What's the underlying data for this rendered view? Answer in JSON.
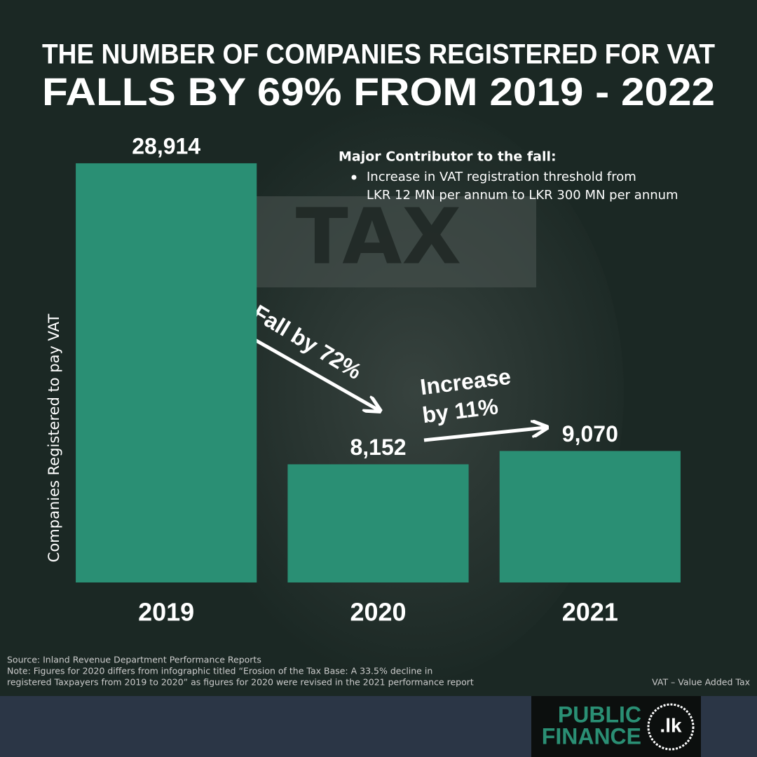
{
  "chart_data": {
    "type": "bar",
    "title": "THE NUMBER OF COMPANIES REGISTERED FOR VAT",
    "subtitle": "FALLS BY 69% FROM 2019 - 2022",
    "y_label": "Companies Registered to pay VAT",
    "categories": [
      "2019",
      "2020",
      "2021"
    ],
    "values": [
      28914,
      8152,
      9070
    ],
    "value_labels": [
      "28,914",
      "8,152",
      "9,070"
    ],
    "color": "#2a8f74",
    "ylim": [
      0,
      30000
    ],
    "grid": false,
    "annotations": {
      "fall": "Fall by 72%",
      "increase": [
        "Increase",
        "by 11%"
      ],
      "contributor_heading": "Major Contributor to the fall:",
      "contributor_bullet": [
        "Increase in VAT registration threshold from",
        "LKR 12 MN per annum to LKR 300 MN per annum"
      ]
    },
    "source": "Source: Inland Revenue Department Performance Reports",
    "note": [
      "Note: Figures for 2020 differs from infographic titled “Erosion of the Tax Base: A 33.5% decline in",
      "registered Taxpayers from 2019 to 2020” as figures for 2020 were revised in the 2021 performance report"
    ],
    "abbreviation": "VAT – Value Added Tax",
    "logo": [
      "PUBLIC",
      "FINANCE",
      ".lk"
    ]
  }
}
